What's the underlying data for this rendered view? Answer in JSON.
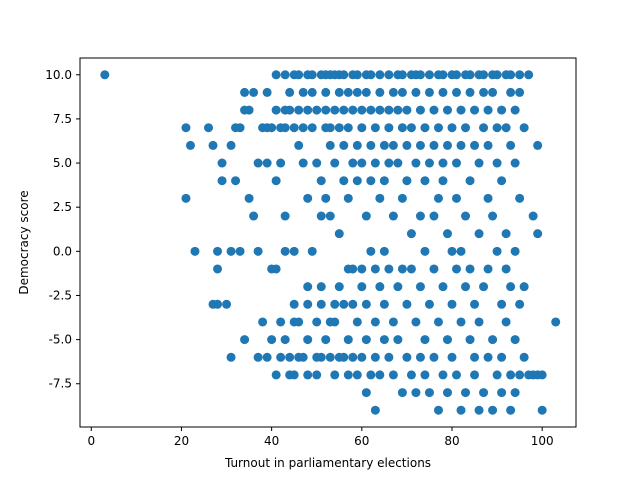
{
  "chart_data": {
    "type": "scatter",
    "xlabel": "Turnout in parliamentary elections",
    "ylabel": "Democracy score",
    "xlim": [
      -2.5,
      107.5
    ],
    "ylim": [
      -9.95,
      10.95
    ],
    "xticks": [
      0,
      20,
      40,
      60,
      80,
      100
    ],
    "yticks": [
      -7.5,
      -5.0,
      -2.5,
      0.0,
      2.5,
      5.0,
      7.5,
      10.0
    ],
    "grid": false,
    "marker_color": "#1f77b4",
    "points": [
      [
        3,
        10
      ],
      [
        21,
        7
      ],
      [
        21,
        3
      ],
      [
        22,
        6
      ],
      [
        23,
        0
      ],
      [
        26,
        7
      ],
      [
        27,
        6
      ],
      [
        27,
        -3
      ],
      [
        28,
        -3
      ],
      [
        28,
        -1
      ],
      [
        28,
        0
      ],
      [
        29,
        5
      ],
      [
        29,
        4
      ],
      [
        30,
        -3
      ],
      [
        31,
        0
      ],
      [
        31,
        -6
      ],
      [
        31,
        6
      ],
      [
        32,
        7
      ],
      [
        32,
        4
      ],
      [
        33,
        7
      ],
      [
        33,
        0
      ],
      [
        34,
        9
      ],
      [
        34,
        8
      ],
      [
        34,
        -5
      ],
      [
        35,
        3
      ],
      [
        35,
        8
      ],
      [
        36,
        2
      ],
      [
        36,
        9
      ],
      [
        37,
        5
      ],
      [
        37,
        0
      ],
      [
        37,
        -6
      ],
      [
        38,
        7
      ],
      [
        38,
        -4
      ],
      [
        39,
        5
      ],
      [
        39,
        7
      ],
      [
        39,
        -6
      ],
      [
        39,
        9
      ],
      [
        40,
        -1
      ],
      [
        40,
        7
      ],
      [
        40,
        -5
      ],
      [
        41,
        10
      ],
      [
        41,
        4
      ],
      [
        41,
        8
      ],
      [
        41,
        -1
      ],
      [
        41,
        -7
      ],
      [
        42,
        7
      ],
      [
        42,
        -6
      ],
      [
        42,
        5
      ],
      [
        42,
        -4
      ],
      [
        43,
        10
      ],
      [
        43,
        8
      ],
      [
        43,
        2
      ],
      [
        43,
        0
      ],
      [
        43,
        -5
      ],
      [
        43,
        7
      ],
      [
        44,
        9
      ],
      [
        44,
        -6
      ],
      [
        44,
        -7
      ],
      [
        44,
        8
      ],
      [
        45,
        10
      ],
      [
        45,
        0
      ],
      [
        45,
        -3
      ],
      [
        45,
        -4
      ],
      [
        45,
        7
      ],
      [
        45,
        -7
      ],
      [
        46,
        8
      ],
      [
        46,
        6
      ],
      [
        46,
        -4
      ],
      [
        46,
        -6
      ],
      [
        46,
        10
      ],
      [
        47,
        5
      ],
      [
        47,
        7
      ],
      [
        47,
        -6
      ],
      [
        47,
        9
      ],
      [
        48,
        10
      ],
      [
        48,
        3
      ],
      [
        48,
        8
      ],
      [
        48,
        -2
      ],
      [
        48,
        -3
      ],
      [
        48,
        -5
      ],
      [
        48,
        -7
      ],
      [
        49,
        0
      ],
      [
        49,
        10
      ],
      [
        49,
        7
      ],
      [
        49,
        9
      ],
      [
        50,
        -6
      ],
      [
        50,
        -4
      ],
      [
        50,
        -7
      ],
      [
        50,
        5
      ],
      [
        50,
        8
      ],
      [
        51,
        10
      ],
      [
        51,
        2
      ],
      [
        51,
        -3
      ],
      [
        51,
        4
      ],
      [
        51,
        -2
      ],
      [
        51,
        -6
      ],
      [
        52,
        10
      ],
      [
        52,
        7
      ],
      [
        52,
        3
      ],
      [
        52,
        8
      ],
      [
        52,
        -5
      ],
      [
        52,
        9
      ],
      [
        53,
        10
      ],
      [
        53,
        2
      ],
      [
        53,
        -4
      ],
      [
        53,
        7
      ],
      [
        53,
        6
      ],
      [
        53,
        -6
      ],
      [
        54,
        10
      ],
      [
        54,
        5
      ],
      [
        54,
        -3
      ],
      [
        54,
        -7
      ],
      [
        54,
        8
      ],
      [
        54,
        -4
      ],
      [
        55,
        1
      ],
      [
        55,
        9
      ],
      [
        55,
        -6
      ],
      [
        55,
        7
      ],
      [
        55,
        10
      ],
      [
        55,
        -2
      ],
      [
        56,
        8
      ],
      [
        56,
        4
      ],
      [
        56,
        -6
      ],
      [
        56,
        -3
      ],
      [
        56,
        6
      ],
      [
        56,
        10
      ],
      [
        57,
        -1
      ],
      [
        57,
        7
      ],
      [
        57,
        9
      ],
      [
        57,
        3
      ],
      [
        57,
        -5
      ],
      [
        57,
        -7
      ],
      [
        58,
        5
      ],
      [
        58,
        -1
      ],
      [
        58,
        8
      ],
      [
        58,
        10
      ],
      [
        58,
        -6
      ],
      [
        58,
        -3
      ],
      [
        59,
        4
      ],
      [
        59,
        6
      ],
      [
        59,
        9
      ],
      [
        59,
        -4
      ],
      [
        59,
        -7
      ],
      [
        59,
        10
      ],
      [
        60,
        8
      ],
      [
        60,
        5
      ],
      [
        60,
        -1
      ],
      [
        60,
        -2
      ],
      [
        60,
        -6
      ],
      [
        60,
        7
      ],
      [
        61,
        2
      ],
      [
        61,
        -8
      ],
      [
        61,
        10
      ],
      [
        61,
        -3
      ],
      [
        61,
        9
      ],
      [
        61,
        -5
      ],
      [
        62,
        4
      ],
      [
        62,
        6
      ],
      [
        62,
        0
      ],
      [
        62,
        -7
      ],
      [
        62,
        8
      ],
      [
        62,
        10
      ],
      [
        63,
        -9
      ],
      [
        63,
        5
      ],
      [
        63,
        -1
      ],
      [
        63,
        7
      ],
      [
        63,
        -4
      ],
      [
        63,
        -6
      ],
      [
        64,
        3
      ],
      [
        64,
        9
      ],
      [
        64,
        -2
      ],
      [
        64,
        8
      ],
      [
        64,
        10
      ],
      [
        64,
        -7
      ],
      [
        65,
        6
      ],
      [
        65,
        0
      ],
      [
        65,
        -5
      ],
      [
        65,
        4
      ],
      [
        65,
        -3
      ],
      [
        66,
        5
      ],
      [
        66,
        7
      ],
      [
        66,
        -1
      ],
      [
        66,
        -6
      ],
      [
        66,
        10
      ],
      [
        66,
        8
      ],
      [
        67,
        9
      ],
      [
        67,
        2
      ],
      [
        67,
        -4
      ],
      [
        67,
        -7
      ],
      [
        67,
        6
      ],
      [
        68,
        10
      ],
      [
        68,
        5
      ],
      [
        68,
        -2
      ],
      [
        68,
        -5
      ],
      [
        68,
        8
      ],
      [
        69,
        7
      ],
      [
        69,
        -1
      ],
      [
        69,
        3
      ],
      [
        69,
        -8
      ],
      [
        69,
        10
      ],
      [
        69,
        9
      ],
      [
        70,
        4
      ],
      [
        70,
        6
      ],
      [
        70,
        -6
      ],
      [
        70,
        -3
      ],
      [
        70,
        8
      ],
      [
        71,
        10
      ],
      [
        71,
        1
      ],
      [
        71,
        -1
      ],
      [
        71,
        -7
      ],
      [
        71,
        7
      ],
      [
        72,
        5
      ],
      [
        72,
        9
      ],
      [
        72,
        -4
      ],
      [
        72,
        -8
      ],
      [
        72,
        10
      ],
      [
        73,
        2
      ],
      [
        73,
        6
      ],
      [
        73,
        -2
      ],
      [
        73,
        8
      ],
      [
        73,
        -6
      ],
      [
        73,
        10
      ],
      [
        74,
        4
      ],
      [
        74,
        -5
      ],
      [
        74,
        7
      ],
      [
        74,
        0
      ],
      [
        74,
        -7
      ],
      [
        75,
        9
      ],
      [
        75,
        -3
      ],
      [
        75,
        5
      ],
      [
        75,
        10
      ],
      [
        75,
        -8
      ],
      [
        76,
        2
      ],
      [
        76,
        8
      ],
      [
        76,
        -1
      ],
      [
        76,
        -6
      ],
      [
        76,
        6
      ],
      [
        77,
        -9
      ],
      [
        77,
        10
      ],
      [
        77,
        3
      ],
      [
        77,
        -4
      ],
      [
        77,
        7
      ],
      [
        78,
        4
      ],
      [
        78,
        -7
      ],
      [
        78,
        9
      ],
      [
        78,
        -2
      ],
      [
        78,
        5
      ],
      [
        78,
        10
      ],
      [
        79,
        1
      ],
      [
        79,
        8
      ],
      [
        79,
        -5
      ],
      [
        79,
        -8
      ],
      [
        79,
        6
      ],
      [
        80,
        10
      ],
      [
        80,
        0
      ],
      [
        80,
        -3
      ],
      [
        80,
        7
      ],
      [
        80,
        -6
      ],
      [
        81,
        9
      ],
      [
        81,
        5
      ],
      [
        81,
        -1
      ],
      [
        81,
        3
      ],
      [
        81,
        -7
      ],
      [
        81,
        10
      ],
      [
        82,
        -9
      ],
      [
        82,
        8
      ],
      [
        82,
        -4
      ],
      [
        82,
        6
      ],
      [
        82,
        0
      ],
      [
        83,
        10
      ],
      [
        83,
        2
      ],
      [
        83,
        -2
      ],
      [
        83,
        -8
      ],
      [
        83,
        7
      ],
      [
        84,
        9
      ],
      [
        84,
        -5
      ],
      [
        84,
        4
      ],
      [
        84,
        -1
      ],
      [
        84,
        10
      ],
      [
        85,
        6
      ],
      [
        85,
        -3
      ],
      [
        85,
        8
      ],
      [
        85,
        -6
      ],
      [
        85,
        -7
      ],
      [
        86,
        10
      ],
      [
        86,
        1
      ],
      [
        86,
        -9
      ],
      [
        86,
        5
      ],
      [
        86,
        -4
      ],
      [
        87,
        9
      ],
      [
        87,
        7
      ],
      [
        87,
        -2
      ],
      [
        87,
        -8
      ],
      [
        87,
        10
      ],
      [
        88,
        8
      ],
      [
        88,
        3
      ],
      [
        88,
        -6
      ],
      [
        88,
        -1
      ],
      [
        88,
        6
      ],
      [
        89,
        10
      ],
      [
        89,
        -9
      ],
      [
        89,
        2
      ],
      [
        89,
        -5
      ],
      [
        89,
        9
      ],
      [
        90,
        7
      ],
      [
        90,
        5
      ],
      [
        90,
        -7
      ],
      [
        90,
        0
      ],
      [
        90,
        10
      ],
      [
        91,
        -3
      ],
      [
        91,
        8
      ],
      [
        91,
        -8
      ],
      [
        91,
        4
      ],
      [
        91,
        -6
      ],
      [
        92,
        10
      ],
      [
        92,
        1
      ],
      [
        92,
        -1
      ],
      [
        92,
        7
      ],
      [
        92,
        -4
      ],
      [
        93,
        6
      ],
      [
        93,
        -9
      ],
      [
        93,
        9
      ],
      [
        93,
        -2
      ],
      [
        93,
        -7
      ],
      [
        93,
        10
      ],
      [
        94,
        5
      ],
      [
        94,
        0
      ],
      [
        94,
        -5
      ],
      [
        94,
        8
      ],
      [
        94,
        -8
      ],
      [
        95,
        10
      ],
      [
        95,
        3
      ],
      [
        95,
        -3
      ],
      [
        95,
        -7
      ],
      [
        95,
        9
      ],
      [
        96,
        -6
      ],
      [
        96,
        7
      ],
      [
        96,
        -2
      ],
      [
        97,
        10
      ],
      [
        97,
        -7
      ],
      [
        98,
        2
      ],
      [
        98,
        -7
      ],
      [
        99,
        6
      ],
      [
        99,
        -7
      ],
      [
        99,
        1
      ],
      [
        100,
        -9
      ],
      [
        100,
        -7
      ],
      [
        103,
        -4
      ]
    ]
  }
}
